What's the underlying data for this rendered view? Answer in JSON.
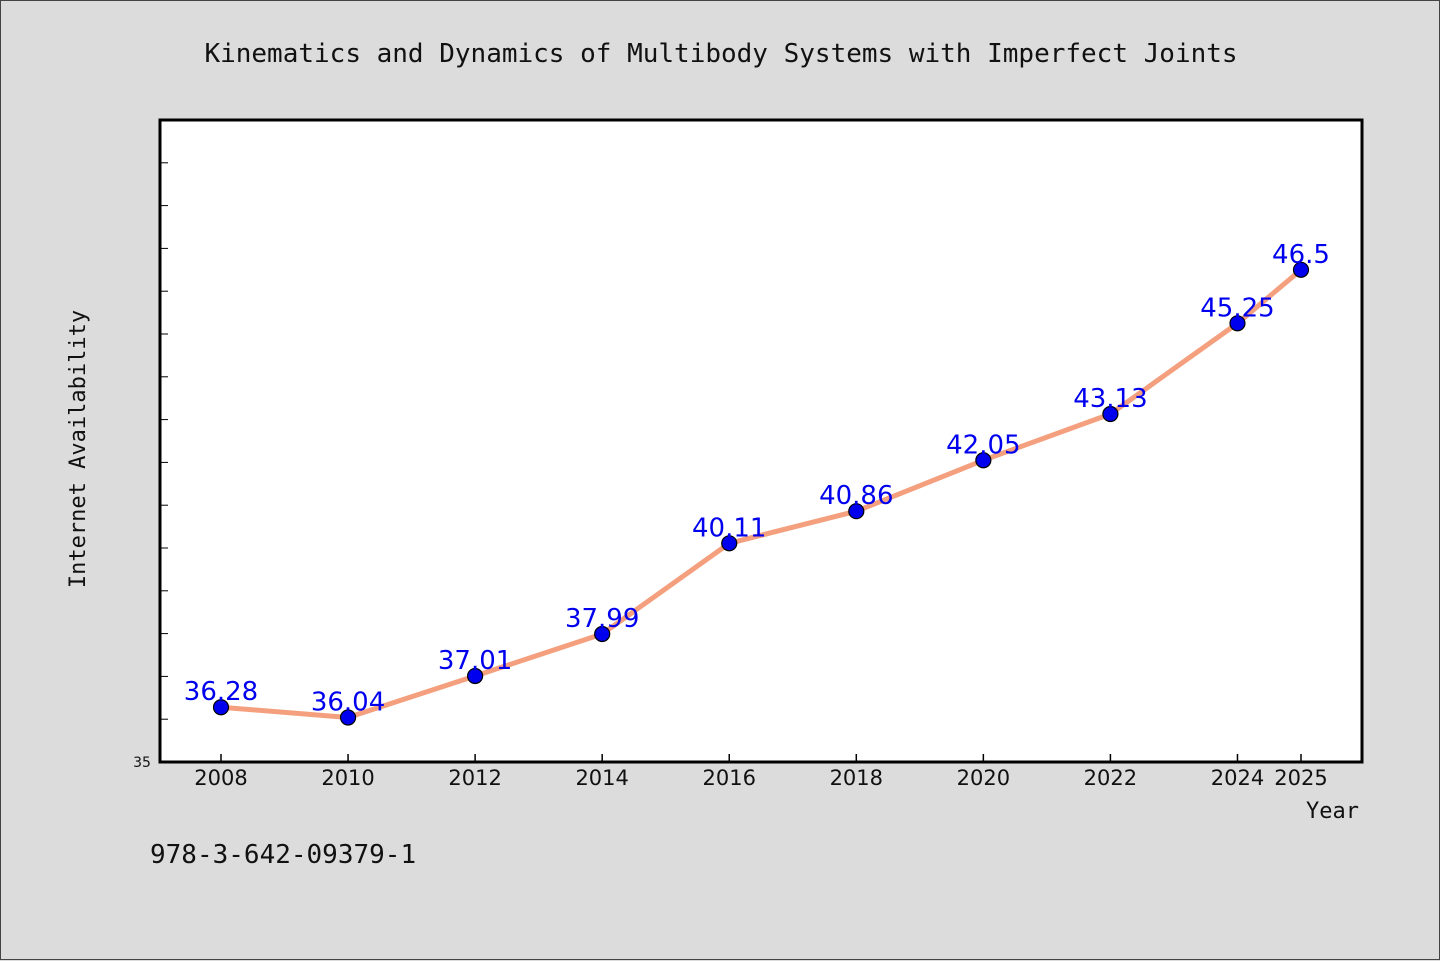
{
  "chart_data": {
    "type": "line",
    "title": "Kinematics and Dynamics of Multibody Systems with Imperfect Joints",
    "xlabel": "Year",
    "ylabel": "Internet Availability",
    "categories": [
      "2008",
      "2010",
      "2012",
      "2014",
      "2016",
      "2018",
      "2020",
      "2022",
      "2024",
      "2025"
    ],
    "series": [
      {
        "values": [
          36.28,
          36.04,
          37.01,
          37.99,
          40.11,
          40.86,
          42.05,
          43.13,
          45.25,
          46.5
        ],
        "data_labels": [
          "36.28",
          "36.04",
          "37.01",
          "37.99",
          "40.11",
          "40.86",
          "42.05",
          "43.13",
          "45.25",
          "46.5"
        ]
      }
    ],
    "ylim": [
      35,
      50
    ],
    "y_tick_labels": [
      "35"
    ],
    "grid": false,
    "line_color": "#f4a07e",
    "marker_color": "#0000ee",
    "label_color": "#0000ee"
  },
  "footer": {
    "isbn": "978-3-642-09379-1"
  }
}
